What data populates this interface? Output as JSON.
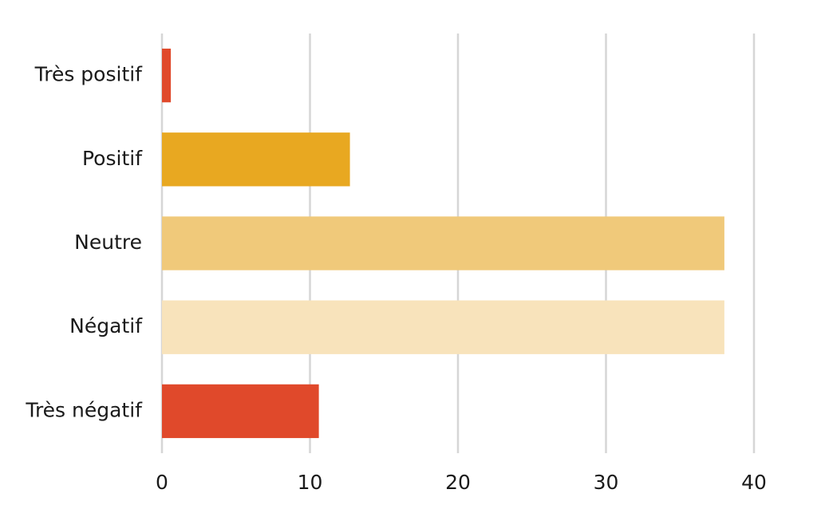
{
  "chart_data": {
    "type": "bar",
    "orientation": "horizontal",
    "categories": [
      "Très positif",
      "Positif",
      "Neutre",
      "Négatif",
      "Très négatif"
    ],
    "values": [
      0.6,
      12.7,
      38.0,
      38.0,
      10.6
    ],
    "colors": [
      "#e0492b",
      "#e8a821",
      "#f0c97a",
      "#f8e3bb",
      "#e0492b"
    ],
    "xlim": [
      0,
      40
    ],
    "xticks": [
      0,
      10,
      20,
      30,
      40
    ],
    "grid": true
  }
}
